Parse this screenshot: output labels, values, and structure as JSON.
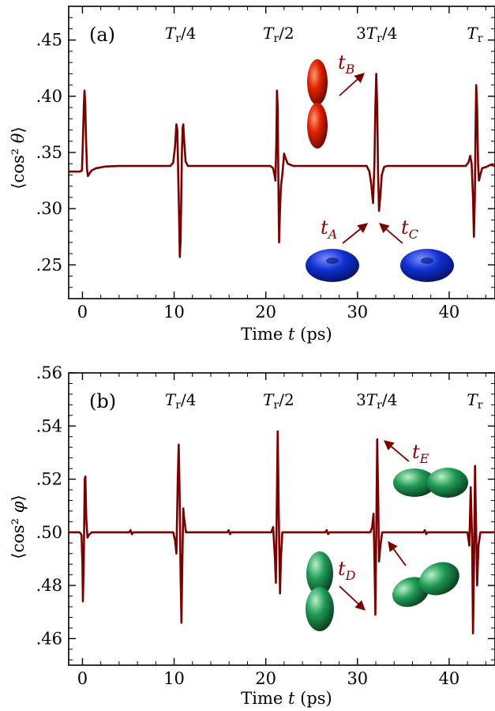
{
  "colors": {
    "curve": "#7a0000",
    "annotation": "#8b0000",
    "prolate_red": "#e02000",
    "oblate_blue": "#1030d0",
    "asym_green": "#1f9a55"
  },
  "chart_data": [
    {
      "type": "line",
      "panel_label": "(a)",
      "xlabel": "Time t (ps)",
      "ylabel": "⟨cos² θ⟩",
      "xlim": [
        -1.5,
        45
      ],
      "ylim": [
        0.22,
        0.48
      ],
      "x_ticks": [
        0,
        10,
        20,
        30,
        40
      ],
      "x_tick_labels": [
        "0",
        "10",
        "20",
        "30",
        "40"
      ],
      "y_ticks": [
        0.25,
        0.3,
        0.35,
        0.4,
        0.45
      ],
      "y_tick_labels": [
        ".25",
        ".30",
        ".35",
        ".40",
        ".45"
      ],
      "period_labels": [
        {
          "text": "T_r/4",
          "x": 10.7
        },
        {
          "text": "T_r/2",
          "x": 21.4
        },
        {
          "text": "3T_r/4",
          "x": 32.1
        },
        {
          "text": "T_r",
          "x": 42.8
        }
      ],
      "baseline": 0.333,
      "plateau": 0.338,
      "series": [
        {
          "points": [
            [
              -1.5,
              0.333
            ],
            [
              -0.3,
              0.333
            ],
            [
              -0.05,
              0.334
            ],
            [
              0.05,
              0.36
            ],
            [
              0.15,
              0.39
            ],
            [
              0.22,
              0.405
            ],
            [
              0.3,
              0.395
            ],
            [
              0.4,
              0.36
            ],
            [
              0.5,
              0.335
            ],
            [
              0.6,
              0.329
            ],
            [
              0.75,
              0.331
            ],
            [
              1.0,
              0.334
            ],
            [
              1.5,
              0.336
            ],
            [
              2.5,
              0.3375
            ],
            [
              4,
              0.338
            ],
            [
              9.6,
              0.338
            ],
            [
              9.9,
              0.341
            ],
            [
              10.1,
              0.355
            ],
            [
              10.25,
              0.375
            ],
            [
              10.35,
              0.37
            ],
            [
              10.45,
              0.33
            ],
            [
              10.55,
              0.29
            ],
            [
              10.62,
              0.257
            ],
            [
              10.7,
              0.27
            ],
            [
              10.78,
              0.31
            ],
            [
              10.85,
              0.35
            ],
            [
              10.93,
              0.372
            ],
            [
              11.0,
              0.375
            ],
            [
              11.1,
              0.36
            ],
            [
              11.25,
              0.342
            ],
            [
              11.5,
              0.338
            ],
            [
              20.5,
              0.338
            ],
            [
              20.8,
              0.336
            ],
            [
              20.95,
              0.33
            ],
            [
              21.05,
              0.325
            ],
            [
              21.15,
              0.36
            ],
            [
              21.22,
              0.405
            ],
            [
              21.3,
              0.39
            ],
            [
              21.38,
              0.32
            ],
            [
              21.45,
              0.27
            ],
            [
              21.55,
              0.3
            ],
            [
              21.65,
              0.32
            ],
            [
              21.8,
              0.33
            ],
            [
              22.0,
              0.349
            ],
            [
              22.15,
              0.345
            ],
            [
              22.4,
              0.34
            ],
            [
              23,
              0.338
            ],
            [
              31.0,
              0.338
            ],
            [
              31.3,
              0.333
            ],
            [
              31.5,
              0.322
            ],
            [
              31.7,
              0.305
            ],
            [
              31.85,
              0.34
            ],
            [
              31.95,
              0.39
            ],
            [
              32.05,
              0.42
            ],
            [
              32.15,
              0.39
            ],
            [
              32.25,
              0.33
            ],
            [
              32.35,
              0.298
            ],
            [
              32.5,
              0.312
            ],
            [
              32.65,
              0.33
            ],
            [
              32.9,
              0.337
            ],
            [
              33.2,
              0.338
            ],
            [
              41.8,
              0.338
            ],
            [
              42.1,
              0.341
            ],
            [
              42.3,
              0.347
            ],
            [
              42.45,
              0.34
            ],
            [
              42.6,
              0.31
            ],
            [
              42.7,
              0.275
            ],
            [
              42.8,
              0.31
            ],
            [
              42.88,
              0.37
            ],
            [
              42.95,
              0.41
            ],
            [
              43.05,
              0.39
            ],
            [
              43.15,
              0.34
            ],
            [
              43.25,
              0.325
            ],
            [
              43.4,
              0.33
            ],
            [
              43.6,
              0.336
            ],
            [
              44,
              0.337
            ],
            [
              44.5,
              0.339
            ],
            [
              45,
              0.338
            ]
          ]
        }
      ],
      "annotations": [
        {
          "label": "t_B",
          "x": 26.3,
          "y": 0.41,
          "shape": "prolate-red"
        },
        {
          "label": "t_A",
          "x": 25.0,
          "y": 0.27,
          "shape": "oblate-blue"
        },
        {
          "label": "t_C",
          "x": 34.0,
          "y": 0.27,
          "shape": "oblate-blue"
        }
      ]
    },
    {
      "type": "line",
      "panel_label": "(b)",
      "xlabel": "Time t (ps)",
      "ylabel": "⟨cos² φ⟩",
      "xlim": [
        -1.5,
        45
      ],
      "ylim": [
        0.45,
        0.56
      ],
      "x_ticks": [
        0,
        10,
        20,
        30,
        40
      ],
      "x_tick_labels": [
        "0",
        "10",
        "20",
        "30",
        "40"
      ],
      "y_ticks": [
        0.46,
        0.48,
        0.5,
        0.52,
        0.54,
        0.56
      ],
      "y_tick_labels": [
        ".46",
        ".48",
        ".50",
        ".52",
        ".54",
        ".56"
      ],
      "period_labels": [
        {
          "text": "T_r/4",
          "x": 10.7
        },
        {
          "text": "T_r/2",
          "x": 21.4
        },
        {
          "text": "3T_r/4",
          "x": 32.1
        },
        {
          "text": "T_r",
          "x": 42.8
        }
      ],
      "baseline": 0.5,
      "series": [
        {
          "points": [
            [
              -1.5,
              0.5
            ],
            [
              -0.3,
              0.5
            ],
            [
              -0.1,
              0.499
            ],
            [
              0.0,
              0.488
            ],
            [
              0.05,
              0.474
            ],
            [
              0.15,
              0.49
            ],
            [
              0.25,
              0.52
            ],
            [
              0.32,
              0.521
            ],
            [
              0.42,
              0.505
            ],
            [
              0.55,
              0.498
            ],
            [
              0.7,
              0.499
            ],
            [
              1.0,
              0.5
            ],
            [
              5.1,
              0.5
            ],
            [
              5.25,
              0.5008
            ],
            [
              5.4,
              0.4993
            ],
            [
              5.55,
              0.5
            ],
            [
              9.9,
              0.5
            ],
            [
              10.1,
              0.497
            ],
            [
              10.25,
              0.492
            ],
            [
              10.4,
              0.52
            ],
            [
              10.5,
              0.533
            ],
            [
              10.6,
              0.515
            ],
            [
              10.7,
              0.485
            ],
            [
              10.8,
              0.466
            ],
            [
              10.9,
              0.49
            ],
            [
              11.0,
              0.509
            ],
            [
              11.1,
              0.505
            ],
            [
              11.3,
              0.5
            ],
            [
              15.8,
              0.5
            ],
            [
              15.95,
              0.5008
            ],
            [
              16.1,
              0.4993
            ],
            [
              16.25,
              0.5
            ],
            [
              20.6,
              0.5
            ],
            [
              20.8,
              0.502
            ],
            [
              21.0,
              0.49
            ],
            [
              21.1,
              0.481
            ],
            [
              21.2,
              0.51
            ],
            [
              21.3,
              0.538
            ],
            [
              21.4,
              0.51
            ],
            [
              21.55,
              0.477
            ],
            [
              21.65,
              0.49
            ],
            [
              21.8,
              0.5
            ],
            [
              26.5,
              0.5
            ],
            [
              26.65,
              0.5008
            ],
            [
              26.8,
              0.4993
            ],
            [
              26.95,
              0.5
            ],
            [
              31.4,
              0.5
            ],
            [
              31.6,
              0.502
            ],
            [
              31.75,
              0.507
            ],
            [
              31.85,
              0.49
            ],
            [
              31.95,
              0.469
            ],
            [
              32.05,
              0.5
            ],
            [
              32.15,
              0.535
            ],
            [
              32.25,
              0.515
            ],
            [
              32.35,
              0.489
            ],
            [
              32.5,
              0.495
            ],
            [
              32.7,
              0.5
            ],
            [
              37.2,
              0.5
            ],
            [
              37.35,
              0.5008
            ],
            [
              37.5,
              0.4993
            ],
            [
              37.65,
              0.5
            ],
            [
              42.0,
              0.5
            ],
            [
              42.2,
              0.495
            ],
            [
              42.35,
              0.517
            ],
            [
              42.5,
              0.498
            ],
            [
              42.6,
              0.462
            ],
            [
              42.72,
              0.49
            ],
            [
              42.82,
              0.525
            ],
            [
              42.95,
              0.5
            ],
            [
              43.05,
              0.48
            ],
            [
              43.2,
              0.495
            ],
            [
              43.4,
              0.5
            ],
            [
              45,
              0.5
            ]
          ]
        }
      ],
      "annotations": [
        {
          "label": "t_D",
          "x": 29.5,
          "y": 0.48,
          "shape": "peanut-green"
        },
        {
          "label": "t_E",
          "x": 35.5,
          "y": 0.528,
          "shape": "peanut-green-horizontal"
        }
      ]
    }
  ]
}
